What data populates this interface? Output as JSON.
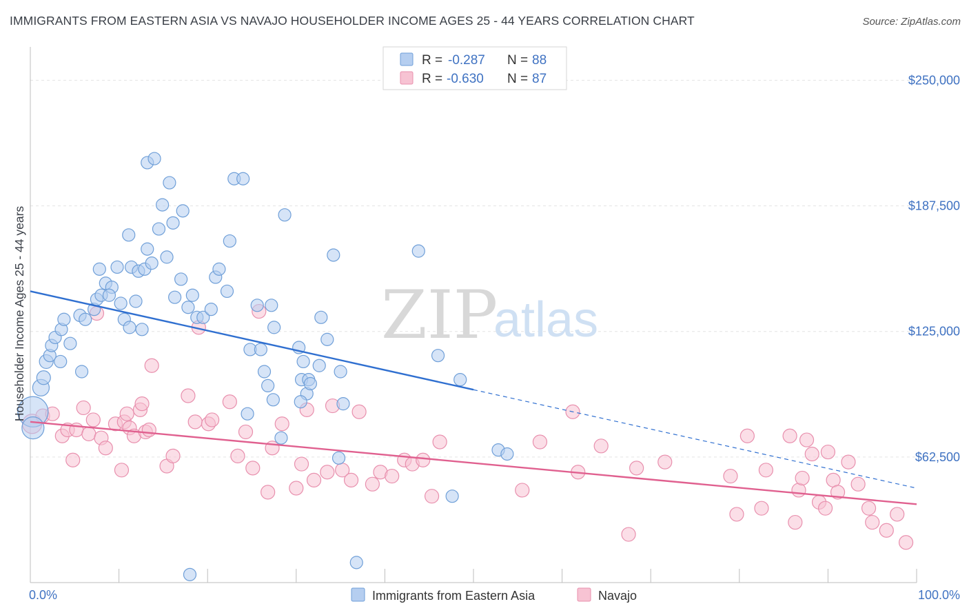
{
  "title": "IMMIGRANTS FROM EASTERN ASIA VS NAVAJO HOUSEHOLDER INCOME AGES 25 - 44 YEARS CORRELATION CHART",
  "source": "Source: ZipAtlas.com",
  "watermark": {
    "zip": "ZIP",
    "atlas": "atlas"
  },
  "legend": {
    "rows": [
      {
        "r_label": "R = ",
        "r_value": "-0.287",
        "n_label": "N = ",
        "n_value": "88"
      },
      {
        "r_label": "R = ",
        "r_value": "-0.630",
        "n_label": "N = ",
        "n_value": "87"
      }
    ]
  },
  "chart_data": {
    "type": "scatter",
    "xlabel": "",
    "ylabel": "Householder Income Ages 25 - 44 years",
    "xlim": [
      0,
      100
    ],
    "ylim": [
      0,
      262500
    ],
    "x_tick_labels": [
      "0.0%",
      "100.0%"
    ],
    "y_ticks": [
      {
        "value": 62500,
        "label": "$62,500"
      },
      {
        "value": 125000,
        "label": "$125,000"
      },
      {
        "value": 187500,
        "label": "$187,500"
      },
      {
        "value": 250000,
        "label": "$250,000"
      }
    ],
    "grid": true,
    "legend_position": "top-center",
    "colors": {
      "blue_fill": "#b5cef0",
      "blue_stroke": "#6f9fd8",
      "blue_line": "#2f6fd0",
      "pink_fill": "#f7c3d3",
      "pink_stroke": "#e88fad",
      "pink_line": "#e0608f"
    },
    "series": [
      {
        "name": "Immigrants from Eastern Asia",
        "trend": {
          "x0": 0,
          "y0": 145000,
          "x1": 50,
          "y1": 96000,
          "dash_to_x": 100,
          "dash_to_y": 47000
        },
        "points": [
          [
            0.3,
            85000,
            22
          ],
          [
            0.3,
            77000,
            16
          ],
          [
            1.2,
            97000,
            12
          ],
          [
            1.5,
            102000,
            10
          ],
          [
            1.8,
            110000,
            10
          ],
          [
            2.2,
            113000,
            9
          ],
          [
            2.4,
            118000,
            9
          ],
          [
            2.8,
            122000,
            9
          ],
          [
            3.5,
            126000,
            9
          ],
          [
            3.8,
            131000,
            9
          ],
          [
            4.5,
            119000,
            9
          ],
          [
            5.6,
            133000,
            9
          ],
          [
            6.2,
            131000,
            9
          ],
          [
            5.8,
            105000,
            9
          ],
          [
            3.4,
            110000,
            9
          ],
          [
            7.2,
            136000,
            9
          ],
          [
            7.5,
            141000,
            9
          ],
          [
            8.0,
            143000,
            9
          ],
          [
            8.5,
            149000,
            9
          ],
          [
            9.2,
            147000,
            9
          ],
          [
            8.9,
            143000,
            9
          ],
          [
            7.8,
            156000,
            9
          ],
          [
            9.8,
            157000,
            9
          ],
          [
            10.2,
            139000,
            9
          ],
          [
            10.6,
            131000,
            9
          ],
          [
            11.1,
            173000,
            9
          ],
          [
            11.4,
            157000,
            9
          ],
          [
            11.9,
            140000,
            9
          ],
          [
            11.2,
            127000,
            9
          ],
          [
            12.2,
            155000,
            9
          ],
          [
            12.6,
            126000,
            9
          ],
          [
            12.9,
            156000,
            9
          ],
          [
            13.2,
            166000,
            9
          ],
          [
            13.7,
            159000,
            9
          ],
          [
            13.2,
            209000,
            9
          ],
          [
            14.0,
            211000,
            9
          ],
          [
            14.5,
            176000,
            9
          ],
          [
            14.9,
            188000,
            9
          ],
          [
            15.4,
            162000,
            9
          ],
          [
            15.7,
            199000,
            9
          ],
          [
            16.1,
            179000,
            9
          ],
          [
            16.3,
            142000,
            9
          ],
          [
            17.0,
            151000,
            9
          ],
          [
            17.2,
            185000,
            9
          ],
          [
            17.8,
            137000,
            9
          ],
          [
            18.3,
            143000,
            9
          ],
          [
            18.8,
            132000,
            9
          ],
          [
            19.5,
            132000,
            9
          ],
          [
            20.4,
            136000,
            9
          ],
          [
            20.9,
            152000,
            9
          ],
          [
            21.3,
            156000,
            9
          ],
          [
            22.2,
            145000,
            9
          ],
          [
            22.5,
            170000,
            9
          ],
          [
            23.0,
            201000,
            9
          ],
          [
            24.0,
            201000,
            9
          ],
          [
            24.8,
            116000,
            9
          ],
          [
            25.6,
            138000,
            9
          ],
          [
            26.0,
            116000,
            9
          ],
          [
            26.4,
            105000,
            9
          ],
          [
            26.8,
            98000,
            9
          ],
          [
            27.2,
            138000,
            9
          ],
          [
            27.5,
            127000,
            9
          ],
          [
            28.3,
            72000,
            9
          ],
          [
            28.7,
            183000,
            9
          ],
          [
            30.3,
            117000,
            9
          ],
          [
            30.6,
            101000,
            9
          ],
          [
            30.8,
            110000,
            9
          ],
          [
            31.2,
            94000,
            9
          ],
          [
            31.4,
            101000,
            9
          ],
          [
            31.6,
            99000,
            9
          ],
          [
            32.6,
            108000,
            9
          ],
          [
            33.5,
            121000,
            9
          ],
          [
            35.0,
            105000,
            9
          ],
          [
            32.8,
            132000,
            9
          ],
          [
            34.2,
            163000,
            9
          ],
          [
            35.3,
            89000,
            9
          ],
          [
            34.8,
            62000,
            9
          ],
          [
            36.8,
            10000,
            9
          ],
          [
            43.8,
            165000,
            9
          ],
          [
            46.0,
            113000,
            9
          ],
          [
            48.5,
            101000,
            9
          ],
          [
            47.6,
            43000,
            9
          ],
          [
            52.8,
            66000,
            9
          ],
          [
            53.8,
            64000,
            9
          ],
          [
            30.5,
            90000,
            9
          ],
          [
            27.4,
            91000,
            9
          ],
          [
            24.5,
            84000,
            9
          ],
          [
            18.0,
            4000,
            9
          ]
        ]
      },
      {
        "name": "Navajo",
        "trend": {
          "x0": 0,
          "y0": 80000,
          "x1": 100,
          "y1": 39000
        },
        "points": [
          [
            0.2,
            79000,
            14
          ],
          [
            1.4,
            83000,
            10
          ],
          [
            2.5,
            84000,
            10
          ],
          [
            3.6,
            73000,
            10
          ],
          [
            4.2,
            76000,
            10
          ],
          [
            4.8,
            61000,
            10
          ],
          [
            5.2,
            76000,
            10
          ],
          [
            6.0,
            87000,
            10
          ],
          [
            6.6,
            74000,
            10
          ],
          [
            7.1,
            81000,
            10
          ],
          [
            7.5,
            134000,
            10
          ],
          [
            8.0,
            72000,
            10
          ],
          [
            8.5,
            67000,
            10
          ],
          [
            9.6,
            79000,
            10
          ],
          [
            10.3,
            56000,
            10
          ],
          [
            10.6,
            80000,
            10
          ],
          [
            10.9,
            84000,
            10
          ],
          [
            11.2,
            77000,
            10
          ],
          [
            11.7,
            73000,
            10
          ],
          [
            12.4,
            86000,
            10
          ],
          [
            12.6,
            89000,
            10
          ],
          [
            13.0,
            75000,
            10
          ],
          [
            13.4,
            76000,
            10
          ],
          [
            13.7,
            108000,
            10
          ],
          [
            15.4,
            58000,
            10
          ],
          [
            16.1,
            63000,
            10
          ],
          [
            17.8,
            93000,
            10
          ],
          [
            18.6,
            80000,
            10
          ],
          [
            19.0,
            127000,
            10
          ],
          [
            20.1,
            79000,
            10
          ],
          [
            20.5,
            81000,
            10
          ],
          [
            22.5,
            90000,
            10
          ],
          [
            23.4,
            63000,
            10
          ],
          [
            24.3,
            75000,
            10
          ],
          [
            25.1,
            57000,
            10
          ],
          [
            25.8,
            135000,
            10
          ],
          [
            26.8,
            45000,
            10
          ],
          [
            27.3,
            67000,
            10
          ],
          [
            28.4,
            79000,
            10
          ],
          [
            30.0,
            47000,
            10
          ],
          [
            30.6,
            59000,
            10
          ],
          [
            31.2,
            86000,
            10
          ],
          [
            32.0,
            51000,
            10
          ],
          [
            33.5,
            55000,
            10
          ],
          [
            34.1,
            88000,
            10
          ],
          [
            35.2,
            56000,
            10
          ],
          [
            36.2,
            51000,
            10
          ],
          [
            37.1,
            85000,
            10
          ],
          [
            38.6,
            49000,
            10
          ],
          [
            39.5,
            55000,
            10
          ],
          [
            40.8,
            53000,
            10
          ],
          [
            42.2,
            61000,
            10
          ],
          [
            43.1,
            59000,
            10
          ],
          [
            44.3,
            61000,
            10
          ],
          [
            45.3,
            43000,
            10
          ],
          [
            46.2,
            70000,
            10
          ],
          [
            55.5,
            46000,
            10
          ],
          [
            57.5,
            70000,
            10
          ],
          [
            61.2,
            85000,
            10
          ],
          [
            61.8,
            55000,
            10
          ],
          [
            64.4,
            68000,
            10
          ],
          [
            67.5,
            24000,
            10
          ],
          [
            68.4,
            57000,
            10
          ],
          [
            71.6,
            60000,
            10
          ],
          [
            79.0,
            53000,
            10
          ],
          [
            79.7,
            34000,
            10
          ],
          [
            80.9,
            73000,
            10
          ],
          [
            82.5,
            37000,
            10
          ],
          [
            83.0,
            56000,
            10
          ],
          [
            85.7,
            73000,
            10
          ],
          [
            86.3,
            30000,
            10
          ],
          [
            86.7,
            46000,
            10
          ],
          [
            87.1,
            52000,
            10
          ],
          [
            87.6,
            71000,
            10
          ],
          [
            88.2,
            64000,
            10
          ],
          [
            89.0,
            40000,
            10
          ],
          [
            89.7,
            37000,
            10
          ],
          [
            90.0,
            65000,
            10
          ],
          [
            90.6,
            51000,
            10
          ],
          [
            91.1,
            45000,
            10
          ],
          [
            92.3,
            60000,
            10
          ],
          [
            93.4,
            49000,
            10
          ],
          [
            94.6,
            37000,
            10
          ],
          [
            95.0,
            30000,
            10
          ],
          [
            96.6,
            26000,
            10
          ],
          [
            97.8,
            34000,
            10
          ],
          [
            98.8,
            20000,
            10
          ]
        ]
      }
    ]
  }
}
